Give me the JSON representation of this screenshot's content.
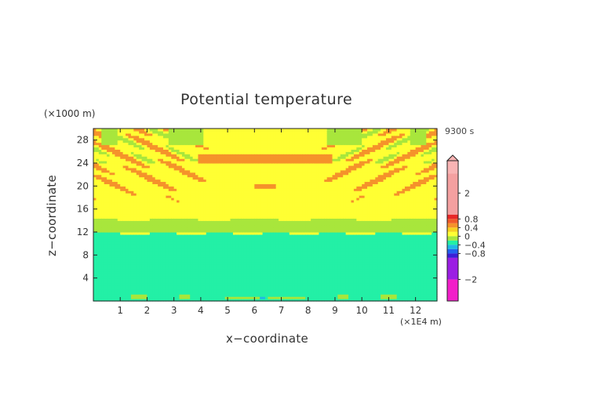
{
  "chart_data": {
    "type": "heatmap",
    "title": "Potential temperature",
    "xlabel": "x−coordinate",
    "ylabel": "z−coordinate",
    "x_unit": "(×1E4 m)",
    "y_unit": "(×1000 m)",
    "time_label": "9300 s",
    "x_ticks": [
      "1",
      "2",
      "3",
      "4",
      "5",
      "6",
      "7",
      "8",
      "9",
      "10",
      "11",
      "12"
    ],
    "y_ticks": [
      "4",
      "8",
      "12",
      "16",
      "20",
      "24",
      "28"
    ],
    "xlim": [
      0,
      12.8
    ],
    "ylim": [
      0,
      30
    ],
    "colorbar": {
      "labels": [
        "2",
        "0.8",
        "0.4",
        "0",
        "−0.4",
        "−0.8",
        "−2"
      ],
      "range": [
        -3,
        3.5
      ],
      "segments": [
        {
          "from": 2.9,
          "to": 3.5,
          "color": "#f9b4b4"
        },
        {
          "from": 1.0,
          "to": 2.9,
          "color": "#f4a0a0"
        },
        {
          "from": 0.8,
          "to": 1.0,
          "color": "#e82828"
        },
        {
          "from": 0.6,
          "to": 0.8,
          "color": "#f05a2a"
        },
        {
          "from": 0.4,
          "to": 0.6,
          "color": "#f5922b"
        },
        {
          "from": 0.2,
          "to": 0.4,
          "color": "#f8d020"
        },
        {
          "from": 0.0,
          "to": 0.2,
          "color": "#ffff33"
        },
        {
          "from": -0.2,
          "to": 0.0,
          "color": "#a8e63c"
        },
        {
          "from": -0.4,
          "to": -0.2,
          "color": "#23f0a6"
        },
        {
          "from": -0.6,
          "to": -0.4,
          "color": "#20b8e6"
        },
        {
          "from": -0.8,
          "to": -0.6,
          "color": "#2262f0"
        },
        {
          "from": -1.0,
          "to": -0.8,
          "color": "#3a1fd6"
        },
        {
          "from": -2.0,
          "to": -1.0,
          "color": "#9b1ee3"
        },
        {
          "from": -3.0,
          "to": -2.0,
          "color": "#f21fc9"
        }
      ]
    },
    "colors": {
      "near_zero_negative": "#23f0a6",
      "near_zero_positive": "#ffff33",
      "weak_negative": "#a8e63c",
      "moderate_positive": "#f5922b"
    }
  }
}
